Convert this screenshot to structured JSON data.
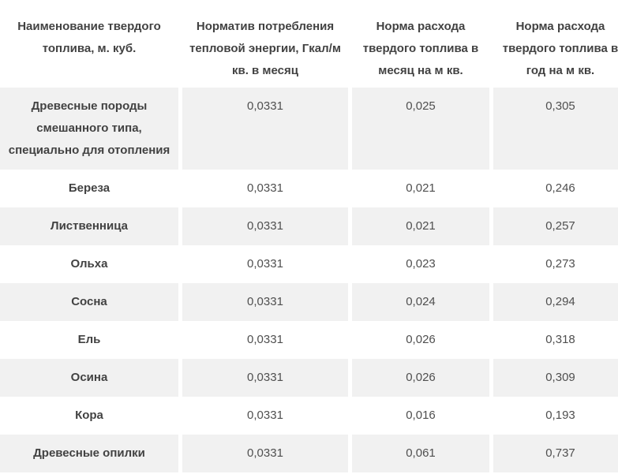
{
  "table": {
    "columns": [
      "Наименование твердого топлива, м. куб.",
      "Норматив потребления тепловой энергии, Гкал/м кв. в месяц",
      "Норма расхода твердого топлива в месяц на м кв.",
      "Норма расхода твердого топлива в год на м кв."
    ],
    "rows": [
      {
        "name": "Древесные породы смешанного типа, специально для отопления",
        "values": [
          "0,0331",
          "0,025",
          "0,305"
        ]
      },
      {
        "name": "Береза",
        "values": [
          "0,0331",
          "0,021",
          "0,246"
        ]
      },
      {
        "name": "Лиственница",
        "values": [
          "0,0331",
          "0,021",
          "0,257"
        ]
      },
      {
        "name": "Ольха",
        "values": [
          "0,0331",
          "0,023",
          "0,273"
        ]
      },
      {
        "name": "Сосна",
        "values": [
          "0,0331",
          "0,024",
          "0,294"
        ]
      },
      {
        "name": "Ель",
        "values": [
          "0,0331",
          "0,026",
          "0,318"
        ]
      },
      {
        "name": "Осина",
        "values": [
          "0,0331",
          "0,026",
          "0,309"
        ]
      },
      {
        "name": "Кора",
        "values": [
          "0,0331",
          "0,016",
          "0,193"
        ]
      },
      {
        "name": "Древесные опилки",
        "values": [
          "0,0331",
          "0,061",
          "0,737"
        ]
      }
    ]
  },
  "colors": {
    "stripe_bg": "#f1f1f1",
    "header_text": "#424242",
    "name_text": "#424242",
    "value_text": "#4f4f4f"
  }
}
